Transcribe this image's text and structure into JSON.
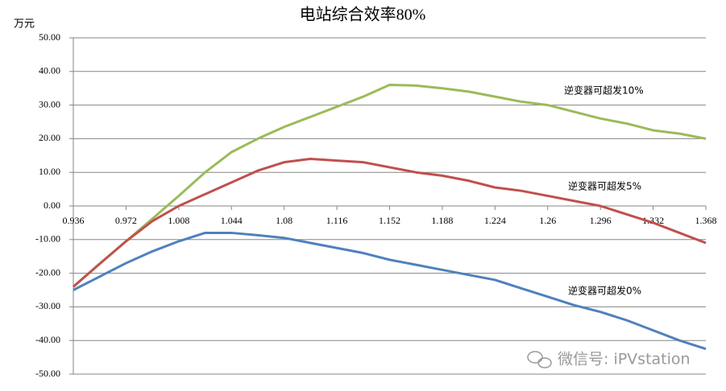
{
  "chart_data": {
    "type": "line",
    "title": "电站综合效率80%",
    "y_label": "万元",
    "watermark": "微信号: iPVstation",
    "x": [
      0.936,
      0.954,
      0.972,
      0.99,
      1.008,
      1.026,
      1.044,
      1.062,
      1.08,
      1.098,
      1.116,
      1.134,
      1.152,
      1.17,
      1.188,
      1.206,
      1.224,
      1.242,
      1.26,
      1.278,
      1.296,
      1.314,
      1.332,
      1.35,
      1.368
    ],
    "xlim": [
      0.936,
      1.368
    ],
    "xticks": [
      0.936,
      0.972,
      1.008,
      1.044,
      1.08,
      1.116,
      1.152,
      1.188,
      1.224,
      1.26,
      1.296,
      1.332,
      1.368
    ],
    "ylim": [
      -50,
      50
    ],
    "yticks": [
      {
        "value": -50,
        "label": "-50.00"
      },
      {
        "value": -40,
        "label": "-40.00"
      },
      {
        "value": -30,
        "label": "-30.00"
      },
      {
        "value": -20,
        "label": "-20.00"
      },
      {
        "value": -10,
        "label": "-10.00"
      },
      {
        "value": 0,
        "label": "0.00"
      },
      {
        "value": 10,
        "label": "10.00"
      },
      {
        "value": 20,
        "label": "20.00"
      },
      {
        "value": 30,
        "label": "30.00"
      },
      {
        "value": 40,
        "label": "40.00"
      },
      {
        "value": 50,
        "label": "50.00"
      }
    ],
    "grid": true,
    "series": [
      {
        "name": "逆变器可超发10%",
        "color": "#9bbb59",
        "values": [
          -24,
          -17.2,
          -10.5,
          -3.8,
          3,
          10,
          16,
          20,
          23.5,
          26.5,
          29.5,
          32.5,
          36,
          35.8,
          35,
          34,
          32.5,
          31,
          30,
          28,
          26,
          24.5,
          22.5,
          21.5,
          20
        ]
      },
      {
        "name": "逆变器可超发5%",
        "color": "#c0504d",
        "values": [
          -24,
          -17.2,
          -10.5,
          -4.5,
          0,
          3.5,
          7,
          10.5,
          13,
          14,
          13.5,
          13,
          11.5,
          10,
          9,
          7.5,
          5.5,
          4.5,
          3,
          1.5,
          0,
          -2.5,
          -5,
          -8,
          -11
        ]
      },
      {
        "name": "逆变器可超发0%",
        "color": "#4f81bd",
        "values": [
          -25,
          -21,
          -17,
          -13.5,
          -10.5,
          -8,
          -8,
          -8.7,
          -9.5,
          -11,
          -12.5,
          -14,
          -16,
          -17.5,
          -19,
          -20.5,
          -22,
          -24.5,
          -27,
          -29.5,
          -31.5,
          -34,
          -37,
          -40,
          -42.5
        ]
      }
    ]
  }
}
